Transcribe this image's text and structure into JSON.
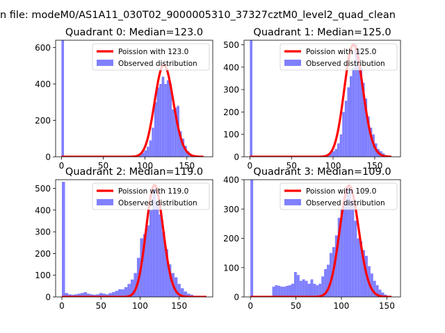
{
  "figure": {
    "title": "n file: modeM0/AS1A11_030T02_9000005310_37327cztM0_level2_quad_clean"
  },
  "colors": {
    "histogram": "#8080ff",
    "poisson": "#ff0000",
    "axes": "#000000"
  },
  "chart_data": [
    {
      "type": "bar",
      "title": "Quadrant 0: Median=123.0",
      "legend_position": "top-right",
      "legend": [
        "Poission with 123.0",
        "Observed distribution"
      ],
      "xlim": [
        -7,
        181
      ],
      "ylim": [
        0,
        640
      ],
      "xticks": [
        0,
        50,
        100,
        150
      ],
      "yticks": [
        0,
        200,
        400,
        600
      ],
      "hist_bins": [
        [
          0,
          3,
          640
        ],
        [
          81,
          3,
          3
        ],
        [
          84,
          3,
          6
        ],
        [
          87,
          3,
          6
        ],
        [
          90,
          3,
          10
        ],
        [
          93,
          3,
          12
        ],
        [
          96,
          3,
          22
        ],
        [
          99,
          3,
          35
        ],
        [
          102,
          3,
          55
        ],
        [
          105,
          3,
          90
        ],
        [
          108,
          3,
          160
        ],
        [
          111,
          3,
          300
        ],
        [
          114,
          3,
          380
        ],
        [
          117,
          3,
          400
        ],
        [
          120,
          3,
          440
        ],
        [
          123,
          3,
          400
        ],
        [
          126,
          3,
          420
        ],
        [
          129,
          3,
          400
        ],
        [
          132,
          3,
          260
        ],
        [
          135,
          3,
          270
        ],
        [
          138,
          3,
          280
        ],
        [
          141,
          3,
          140
        ],
        [
          144,
          3,
          100
        ],
        [
          147,
          3,
          60
        ],
        [
          150,
          3,
          30
        ],
        [
          153,
          3,
          15
        ],
        [
          156,
          3,
          8
        ],
        [
          159,
          3,
          4
        ],
        [
          162,
          3,
          2
        ],
        [
          165,
          3,
          1
        ]
      ],
      "poisson": {
        "lambda": 123.0,
        "scale": 505,
        "x_range": [
          0,
          170
        ]
      }
    },
    {
      "type": "bar",
      "title": "Quadrant 1: Median=125.0",
      "legend_position": "top-right",
      "legend": [
        "Poission with 125.0",
        "Observed distribution"
      ],
      "xlim": [
        -7,
        181
      ],
      "ylim": [
        0,
        520
      ],
      "xticks": [
        0,
        50,
        100,
        150
      ],
      "yticks": [
        0,
        100,
        200,
        300,
        400,
        500
      ],
      "hist_bins": [
        [
          0,
          3,
          520
        ],
        [
          81,
          3,
          2
        ],
        [
          84,
          3,
          3
        ],
        [
          87,
          3,
          5
        ],
        [
          90,
          3,
          8
        ],
        [
          93,
          3,
          12
        ],
        [
          96,
          3,
          18
        ],
        [
          99,
          3,
          25
        ],
        [
          102,
          3,
          35
        ],
        [
          105,
          3,
          60
        ],
        [
          108,
          3,
          100
        ],
        [
          111,
          3,
          200
        ],
        [
          114,
          3,
          250
        ],
        [
          117,
          3,
          310
        ],
        [
          120,
          3,
          360
        ],
        [
          123,
          3,
          400
        ],
        [
          126,
          3,
          500
        ],
        [
          129,
          3,
          480
        ],
        [
          132,
          3,
          400
        ],
        [
          135,
          3,
          330
        ],
        [
          138,
          3,
          260
        ],
        [
          141,
          3,
          180
        ],
        [
          144,
          3,
          130
        ],
        [
          147,
          3,
          100
        ],
        [
          150,
          3,
          60
        ],
        [
          153,
          3,
          35
        ],
        [
          156,
          3,
          25
        ],
        [
          159,
          3,
          15
        ],
        [
          162,
          3,
          8
        ],
        [
          165,
          3,
          3
        ]
      ],
      "poisson": {
        "lambda": 125.0,
        "scale": 500,
        "x_range": [
          0,
          170
        ]
      }
    },
    {
      "type": "bar",
      "title": "Quadrant 2: Median=119.0",
      "legend_position": "top-right",
      "legend": [
        "Poission with 119.0",
        "Observed distribution"
      ],
      "xlim": [
        -8,
        193
      ],
      "ylim": [
        0,
        540
      ],
      "xticks": [
        0,
        50,
        100,
        150
      ],
      "yticks": [
        0,
        100,
        200,
        300,
        400,
        500
      ],
      "hist_bins": [
        [
          0,
          4,
          530
        ],
        [
          4,
          4,
          18
        ],
        [
          8,
          4,
          12
        ],
        [
          12,
          4,
          10
        ],
        [
          16,
          4,
          12
        ],
        [
          20,
          4,
          15
        ],
        [
          24,
          4,
          18
        ],
        [
          28,
          4,
          22
        ],
        [
          32,
          4,
          15
        ],
        [
          36,
          4,
          12
        ],
        [
          40,
          4,
          10
        ],
        [
          44,
          4,
          12
        ],
        [
          48,
          4,
          18
        ],
        [
          52,
          4,
          15
        ],
        [
          56,
          4,
          12
        ],
        [
          60,
          4,
          18
        ],
        [
          64,
          4,
          22
        ],
        [
          68,
          4,
          28
        ],
        [
          72,
          4,
          35
        ],
        [
          76,
          4,
          35
        ],
        [
          80,
          4,
          45
        ],
        [
          84,
          4,
          60
        ],
        [
          88,
          4,
          80
        ],
        [
          92,
          4,
          110
        ],
        [
          96,
          4,
          180
        ],
        [
          100,
          4,
          270
        ],
        [
          104,
          4,
          290
        ],
        [
          108,
          4,
          330
        ],
        [
          112,
          4,
          400
        ],
        [
          116,
          4,
          500
        ],
        [
          120,
          4,
          440
        ],
        [
          124,
          4,
          380
        ],
        [
          128,
          4,
          300
        ],
        [
          132,
          4,
          220
        ],
        [
          136,
          4,
          150
        ],
        [
          140,
          4,
          110
        ],
        [
          144,
          4,
          90
        ],
        [
          148,
          4,
          60
        ],
        [
          152,
          4,
          40
        ],
        [
          156,
          4,
          25
        ],
        [
          160,
          4,
          15
        ],
        [
          164,
          4,
          10
        ],
        [
          168,
          4,
          5
        ],
        [
          172,
          4,
          3
        ],
        [
          176,
          4,
          2
        ],
        [
          180,
          4,
          1
        ]
      ],
      "poisson": {
        "lambda": 119.0,
        "scale": 515,
        "x_range": [
          0,
          185
        ]
      }
    },
    {
      "type": "bar",
      "title": "Quadrant 3: Median=109.0",
      "legend_position": "top-right",
      "legend": [
        "Poission with 109.0",
        "Observed distribution"
      ],
      "xlim": [
        -7,
        165
      ],
      "ylim": [
        0,
        400
      ],
      "xticks": [
        0,
        50,
        100,
        150
      ],
      "yticks": [
        0,
        100,
        200,
        300,
        400
      ],
      "hist_bins": [
        [
          0,
          3,
          400
        ],
        [
          21,
          3,
          3
        ],
        [
          24,
          3,
          35
        ],
        [
          27,
          3,
          40
        ],
        [
          30,
          3,
          38
        ],
        [
          33,
          3,
          35
        ],
        [
          36,
          3,
          35
        ],
        [
          39,
          3,
          38
        ],
        [
          42,
          3,
          40
        ],
        [
          45,
          3,
          45
        ],
        [
          48,
          3,
          85
        ],
        [
          51,
          3,
          75
        ],
        [
          54,
          3,
          55
        ],
        [
          57,
          3,
          60
        ],
        [
          60,
          3,
          55
        ],
        [
          63,
          3,
          45
        ],
        [
          66,
          3,
          60
        ],
        [
          69,
          3,
          45
        ],
        [
          72,
          3,
          40
        ],
        [
          75,
          3,
          45
        ],
        [
          78,
          3,
          70
        ],
        [
          81,
          3,
          95
        ],
        [
          84,
          3,
          110
        ],
        [
          87,
          3,
          150
        ],
        [
          90,
          3,
          170
        ],
        [
          93,
          3,
          210
        ],
        [
          96,
          3,
          270
        ],
        [
          99,
          3,
          300
        ],
        [
          102,
          3,
          330
        ],
        [
          105,
          3,
          380
        ],
        [
          108,
          3,
          370
        ],
        [
          111,
          3,
          330
        ],
        [
          114,
          3,
          260
        ],
        [
          117,
          3,
          200
        ],
        [
          120,
          3,
          190
        ],
        [
          123,
          3,
          160
        ],
        [
          126,
          3,
          140
        ],
        [
          129,
          3,
          105
        ],
        [
          132,
          3,
          80
        ],
        [
          135,
          3,
          55
        ],
        [
          138,
          3,
          40
        ],
        [
          141,
          3,
          25
        ],
        [
          144,
          3,
          15
        ],
        [
          147,
          3,
          8
        ],
        [
          150,
          3,
          4
        ],
        [
          153,
          3,
          2
        ]
      ],
      "poisson": {
        "lambda": 109.0,
        "scale": 380,
        "x_range": [
          0,
          155
        ]
      }
    }
  ]
}
